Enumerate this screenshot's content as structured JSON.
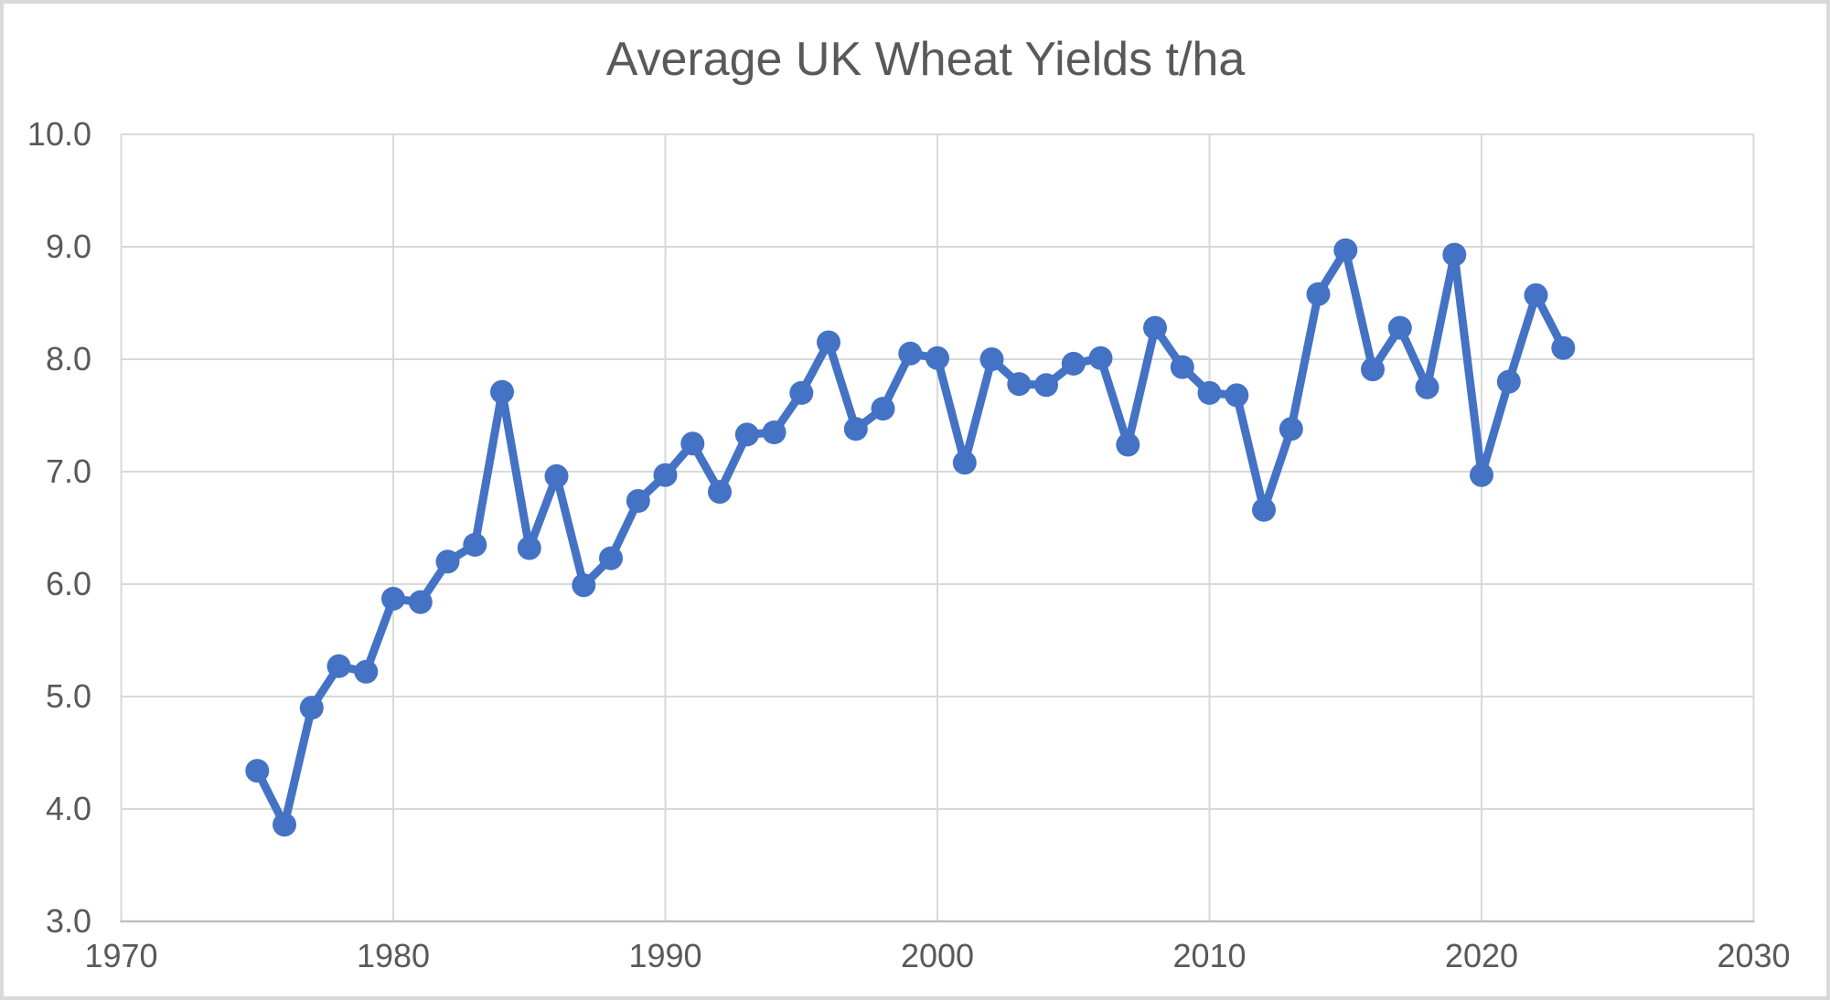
{
  "chart_data": {
    "type": "line",
    "title": "Average UK Wheat Yields t/ha",
    "xlabel": "",
    "ylabel": "",
    "series": [
      {
        "name": "Average UK wheat yield (t/ha)",
        "x": [
          1975,
          1976,
          1977,
          1978,
          1979,
          1980,
          1981,
          1982,
          1983,
          1984,
          1985,
          1986,
          1987,
          1988,
          1989,
          1990,
          1991,
          1992,
          1993,
          1994,
          1995,
          1996,
          1997,
          1998,
          1999,
          2000,
          2001,
          2002,
          2003,
          2004,
          2005,
          2006,
          2007,
          2008,
          2009,
          2010,
          2011,
          2012,
          2013,
          2014,
          2015,
          2016,
          2017,
          2018,
          2019,
          2020,
          2021,
          2022,
          2023
        ],
        "values": [
          4.34,
          3.86,
          4.9,
          5.27,
          5.22,
          5.87,
          5.84,
          6.2,
          6.35,
          7.71,
          6.32,
          6.96,
          5.99,
          6.23,
          6.74,
          6.97,
          7.25,
          6.82,
          7.33,
          7.35,
          7.7,
          8.15,
          7.38,
          7.56,
          8.05,
          8.01,
          7.08,
          8.0,
          7.78,
          7.77,
          7.96,
          8.01,
          7.24,
          8.28,
          7.93,
          7.7,
          7.68,
          6.66,
          7.38,
          8.58,
          8.97,
          7.91,
          8.28,
          7.75,
          8.93,
          6.97,
          7.8,
          8.57,
          8.1
        ]
      }
    ],
    "xlim": [
      1970,
      2030
    ],
    "ylim": [
      3.0,
      10.0
    ],
    "xticks": [
      1970,
      1980,
      1990,
      2000,
      2010,
      2020,
      2030
    ],
    "xtick_labels": [
      "1970",
      "1980",
      "1990",
      "2000",
      "2010",
      "2020",
      "2030"
    ],
    "yticks": [
      3.0,
      4.0,
      5.0,
      6.0,
      7.0,
      8.0,
      9.0,
      10.0
    ],
    "ytick_labels": [
      "3.0",
      "4.0",
      "5.0",
      "6.0",
      "7.0",
      "8.0",
      "9.0",
      "10.0"
    ],
    "grid": true,
    "legend": false,
    "marker": "circle",
    "colors": {
      "line": "#4472C4",
      "marker": "#4472C4",
      "text": "#595959",
      "gridline": "#D9D9D9",
      "axis_line": "#BFBFBF",
      "background": "#FFFFFF",
      "frame_border": "#D9D9D9"
    }
  }
}
